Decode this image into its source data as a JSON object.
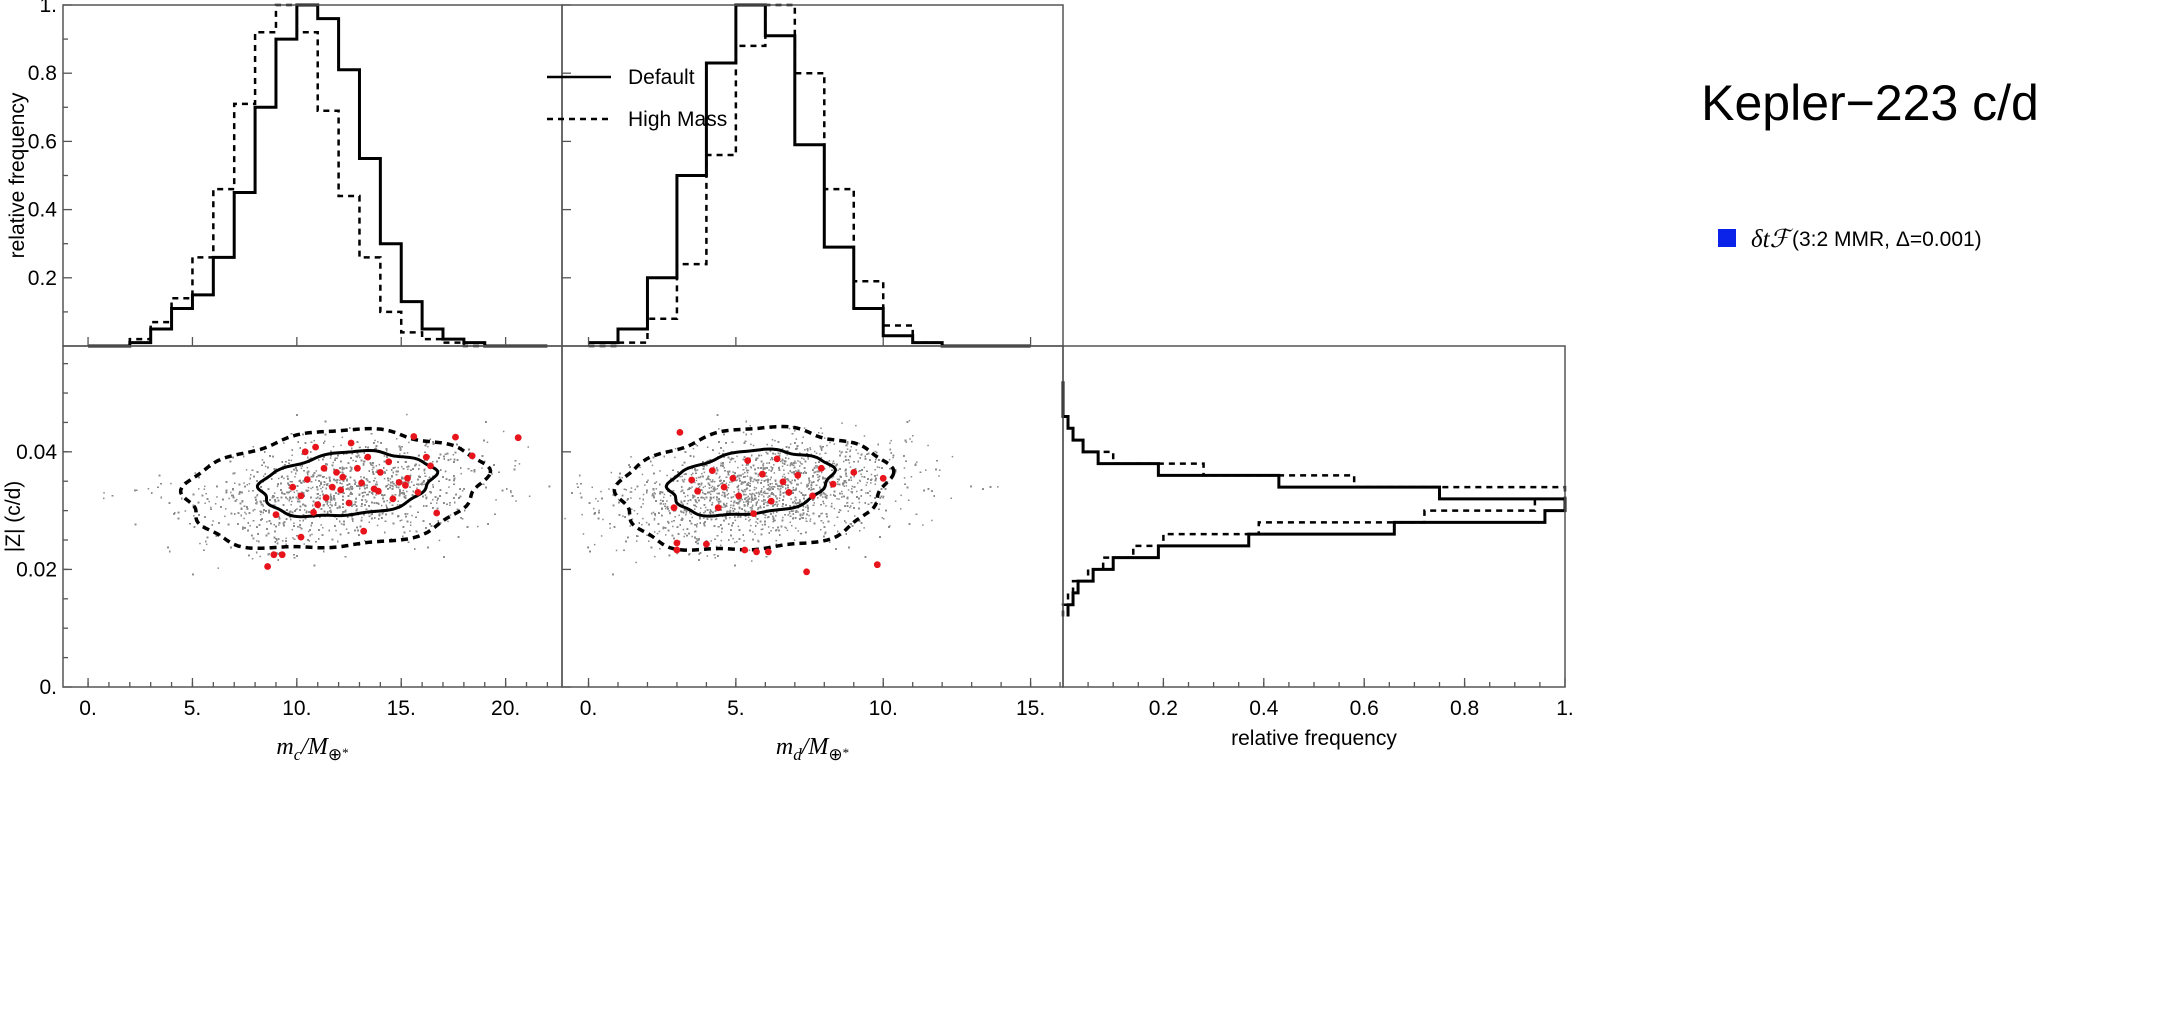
{
  "title": "Kepler−223 c/d",
  "legend": {
    "default_label": "Default",
    "highmass_label": "High Mass",
    "method_symbol": "δtℱ",
    "method_text": "(3:2 MMR, Δ=0.001)",
    "method_color": "#0b22e8"
  },
  "colors": {
    "cloud": "#8a8a8a",
    "points": "#e8141c",
    "line": "#000000"
  },
  "chart_data": [
    {
      "id": "hist-mc",
      "type": "histogram",
      "ylabel": "relative frequency",
      "xlim": [
        -1.2,
        22.7
      ],
      "ylim": [
        0,
        1.0
      ],
      "yticks": [
        0.2,
        0.4,
        0.6,
        0.8,
        1.0
      ],
      "ytick_labels": [
        "0.2",
        "0.4",
        "0.6",
        "0.8",
        "1."
      ],
      "series": [
        {
          "name": "Default",
          "style": "solid",
          "edges": [
            0,
            2,
            3,
            4,
            5,
            6,
            7,
            8,
            9,
            10,
            11,
            12,
            13,
            14,
            15,
            16,
            17,
            18,
            19,
            20,
            21,
            22
          ],
          "values": [
            0.0,
            0.01,
            0.05,
            0.11,
            0.15,
            0.26,
            0.45,
            0.7,
            0.9,
            1.0,
            0.96,
            0.81,
            0.55,
            0.3,
            0.13,
            0.05,
            0.02,
            0.01,
            0.0,
            0.0,
            0.0
          ]
        },
        {
          "name": "High Mass",
          "style": "dashed",
          "edges": [
            0,
            2,
            3,
            4,
            5,
            6,
            7,
            8,
            9,
            10,
            11,
            12,
            13,
            14,
            15,
            16,
            17,
            18,
            19,
            20
          ],
          "values": [
            0.0,
            0.02,
            0.07,
            0.14,
            0.26,
            0.46,
            0.71,
            0.92,
            1.0,
            0.92,
            0.69,
            0.44,
            0.26,
            0.1,
            0.04,
            0.02,
            0.01,
            0.0,
            0.0
          ]
        }
      ]
    },
    {
      "id": "hist-md",
      "type": "histogram",
      "xlim": [
        -0.9,
        16.1
      ],
      "ylim": [
        0,
        1.0
      ],
      "series": [
        {
          "name": "Default",
          "style": "solid",
          "edges": [
            0,
            1,
            2,
            3,
            4,
            5,
            6,
            7,
            8,
            9,
            10,
            11,
            12,
            13,
            14,
            15
          ],
          "values": [
            0.01,
            0.05,
            0.2,
            0.5,
            0.83,
            1.0,
            0.91,
            0.59,
            0.29,
            0.11,
            0.03,
            0.01,
            0.0,
            0.0,
            0.0
          ]
        },
        {
          "name": "High Mass",
          "style": "dashed",
          "edges": [
            0,
            1,
            2,
            3,
            4,
            5,
            6,
            7,
            8,
            9,
            10,
            11,
            12,
            13,
            14,
            15
          ],
          "values": [
            0.0,
            0.01,
            0.08,
            0.24,
            0.56,
            0.88,
            1.0,
            0.8,
            0.46,
            0.19,
            0.06,
            0.01,
            0.0,
            0.0,
            0.0
          ]
        }
      ]
    },
    {
      "id": "scatter-mc",
      "type": "scatter",
      "xlabel": "m_c/M_⊕",
      "xlabel_parts": [
        "m",
        "c",
        "/M",
        "⊕",
        "*"
      ],
      "ylabel": "|Z| (c/d)",
      "xlim": [
        -1.2,
        22.7
      ],
      "ylim": [
        0,
        0.058
      ],
      "xticks": [
        0,
        5,
        10,
        15,
        20
      ],
      "xtick_labels": [
        "0.",
        "5.",
        "10.",
        "15.",
        "20."
      ],
      "yticks": [
        0,
        0.02,
        0.04
      ],
      "ytick_labels": [
        "0.",
        "0.02",
        "0.04"
      ],
      "cloud": {
        "center": [
          12.0,
          0.0335
        ],
        "corr": 0.6
      },
      "contour_inner": {
        "center": [
          12.4,
          0.0345
        ],
        "semi_axes": [
          4.2,
          0.0053
        ],
        "angle_deg": 10
      },
      "contour_outer": {
        "center": [
          11.8,
          0.0335
        ],
        "semi_axes": [
          7.2,
          0.0098
        ],
        "angle_deg": 9
      },
      "points": [
        [
          8.6,
          0.0205
        ],
        [
          9.3,
          0.0225
        ],
        [
          8.9,
          0.0225
        ],
        [
          10.2,
          0.0255
        ],
        [
          9.0,
          0.0293
        ],
        [
          13.2,
          0.0265
        ],
        [
          16.7,
          0.0296
        ],
        [
          15.6,
          0.0426
        ],
        [
          17.6,
          0.0425
        ],
        [
          20.6,
          0.0424
        ],
        [
          12.6,
          0.0415
        ],
        [
          10.9,
          0.0408
        ],
        [
          18.4,
          0.0393
        ],
        [
          15.3,
          0.0355
        ],
        [
          15.2,
          0.0343
        ],
        [
          14.9,
          0.0348
        ],
        [
          13.7,
          0.0337
        ],
        [
          13.9,
          0.0333
        ],
        [
          12.1,
          0.0335
        ],
        [
          12.5,
          0.0313
        ],
        [
          11.9,
          0.0365
        ],
        [
          11.3,
          0.0372
        ],
        [
          10.5,
          0.0353
        ],
        [
          10.2,
          0.0325
        ],
        [
          11.4,
          0.0322
        ],
        [
          14.0,
          0.0365
        ],
        [
          14.4,
          0.0383
        ],
        [
          16.2,
          0.0391
        ],
        [
          16.4,
          0.0376
        ],
        [
          10.8,
          0.0297
        ],
        [
          12.9,
          0.0372
        ],
        [
          13.1,
          0.0347
        ],
        [
          11.7,
          0.034
        ],
        [
          12.2,
          0.0357
        ],
        [
          15.8,
          0.0331
        ],
        [
          11.0,
          0.031
        ],
        [
          10.4,
          0.04
        ],
        [
          13.4,
          0.0391
        ],
        [
          14.6,
          0.032
        ],
        [
          9.8,
          0.034
        ]
      ]
    },
    {
      "id": "scatter-md",
      "type": "scatter",
      "xlabel": "m_d/M_⊕",
      "xlabel_parts": [
        "m",
        "d",
        "/M",
        "⊕",
        "*"
      ],
      "xlim": [
        -0.9,
        16.1
      ],
      "ylim": [
        0,
        0.058
      ],
      "xticks": [
        0,
        5,
        10,
        15
      ],
      "xtick_labels": [
        "0.",
        "5.",
        "10.",
        "15."
      ],
      "cloud": {
        "center": [
          5.8,
          0.0335
        ],
        "corr": 0.6
      },
      "contour_inner": {
        "center": [
          5.5,
          0.0347
        ],
        "semi_axes": [
          2.8,
          0.0053
        ],
        "angle_deg": 12
      },
      "contour_outer": {
        "center": [
          5.6,
          0.0335
        ],
        "semi_axes": [
          4.6,
          0.0102
        ],
        "angle_deg": 10
      },
      "points": [
        [
          3.1,
          0.0433
        ],
        [
          3.0,
          0.0245
        ],
        [
          3.0,
          0.0233
        ],
        [
          4.0,
          0.0243
        ],
        [
          5.3,
          0.0233
        ],
        [
          5.7,
          0.023
        ],
        [
          6.1,
          0.023
        ],
        [
          7.4,
          0.0196
        ],
        [
          9.8,
          0.0208
        ],
        [
          10.0,
          0.0355
        ],
        [
          9.0,
          0.0365
        ],
        [
          5.4,
          0.0385
        ],
        [
          5.9,
          0.0362
        ],
        [
          4.6,
          0.034
        ],
        [
          3.7,
          0.0333
        ],
        [
          6.6,
          0.0349
        ],
        [
          7.1,
          0.036
        ],
        [
          8.3,
          0.0345
        ],
        [
          4.2,
          0.0368
        ],
        [
          5.1,
          0.0325
        ],
        [
          6.2,
          0.0316
        ],
        [
          3.5,
          0.0352
        ],
        [
          7.9,
          0.0372
        ],
        [
          4.9,
          0.0355
        ],
        [
          6.8,
          0.0331
        ],
        [
          2.9,
          0.0305
        ],
        [
          5.6,
          0.0295
        ],
        [
          6.4,
          0.0388
        ],
        [
          7.6,
          0.0325
        ],
        [
          4.4,
          0.0305
        ]
      ]
    },
    {
      "id": "hist-z",
      "type": "histogram",
      "orientation": "horizontal",
      "xlabel": "relative frequency",
      "xlim": [
        0,
        1.0
      ],
      "ylim": [
        0,
        0.058
      ],
      "xticks": [
        0.2,
        0.4,
        0.6,
        0.8,
        1.0
      ],
      "xtick_labels": [
        "0.2",
        "0.4",
        "0.6",
        "0.8",
        "1."
      ],
      "series": [
        {
          "name": "Default",
          "style": "solid",
          "edges": [
            0.012,
            0.014,
            0.016,
            0.018,
            0.02,
            0.022,
            0.024,
            0.026,
            0.028,
            0.03,
            0.032,
            0.034,
            0.036,
            0.038,
            0.04,
            0.042,
            0.044,
            0.046,
            0.048,
            0.05,
            0.052
          ],
          "values": [
            0.01,
            0.02,
            0.03,
            0.06,
            0.1,
            0.19,
            0.37,
            0.66,
            0.96,
            1.0,
            0.75,
            0.43,
            0.19,
            0.07,
            0.04,
            0.02,
            0.01,
            0.0,
            0.0,
            0.0
          ]
        },
        {
          "name": "High Mass",
          "style": "dashed",
          "edges": [
            0.012,
            0.014,
            0.016,
            0.018,
            0.02,
            0.022,
            0.024,
            0.026,
            0.028,
            0.03,
            0.032,
            0.034,
            0.036,
            0.038,
            0.04,
            0.042,
            0.044,
            0.046,
            0.048,
            0.05,
            0.052
          ],
          "values": [
            0.0,
            0.01,
            0.02,
            0.05,
            0.08,
            0.14,
            0.2,
            0.39,
            0.72,
            0.94,
            1.0,
            0.58,
            0.28,
            0.1,
            0.04,
            0.02,
            0.01,
            0.0,
            0.0,
            0.0
          ]
        }
      ]
    }
  ]
}
